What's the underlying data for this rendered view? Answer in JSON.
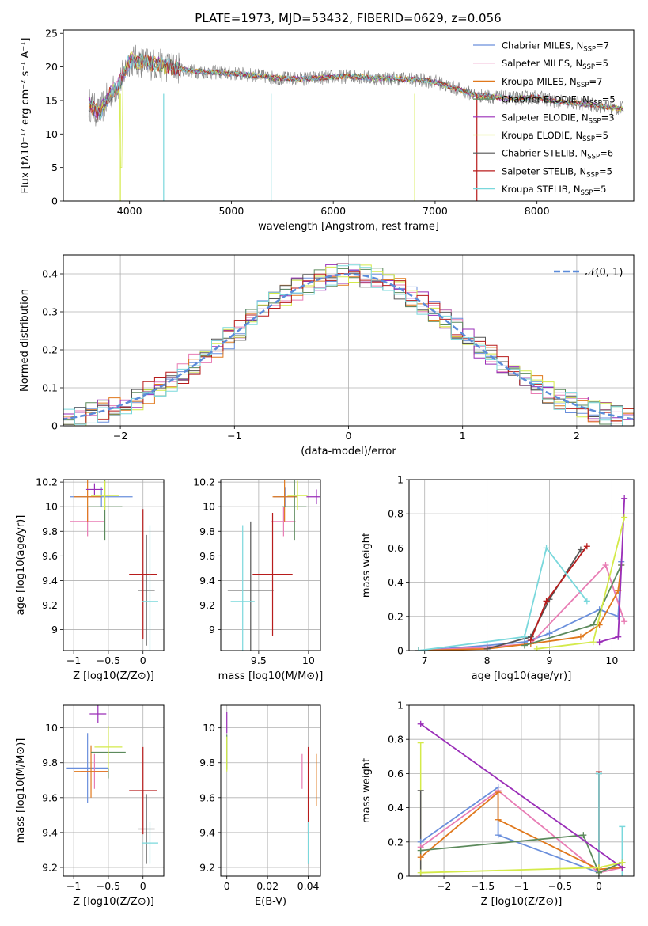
{
  "figure_title": "PLATE=1973, MJD=53432, FIBERID=0629, z=0.056",
  "colors": {
    "chabrier_miles": "#6a8fdc",
    "salpeter_miles": "#e87cb4",
    "kroupa_miles": "#e0781c",
    "chabrier_elodie": "#5c8a5c",
    "salpeter_elodie": "#9a2eb8",
    "kroupa_elodie": "#d4ea4a",
    "chabrier_stelib": "#555555",
    "salpeter_stelib": "#b81c1c",
    "kroupa_stelib": "#7ad8dc",
    "data_spectrum": "#808080",
    "normal_curve": "#5b8bd9",
    "grid": "#b0b0b0"
  },
  "legend_entries": [
    {
      "model": "Chabrier MILES",
      "nssp": "7"
    },
    {
      "model": "Salpeter MILES",
      "nssp": "5"
    },
    {
      "model": "Kroupa MILES",
      "nssp": "7"
    },
    {
      "model": "Chabrier ELODIE",
      "nssp": "5"
    },
    {
      "model": "Salpeter ELODIE",
      "nssp": "3"
    },
    {
      "model": "Kroupa ELODIE",
      "nssp": "5"
    },
    {
      "model": "Chabrier STELIB",
      "nssp": "6"
    },
    {
      "model": "Salpeter STELIB",
      "nssp": "5"
    },
    {
      "model": "Kroupa STELIB",
      "nssp": "5"
    }
  ],
  "chart_data": [
    {
      "id": "spectrum",
      "type": "line",
      "title": "PLATE=1973, MJD=53432, FIBERID=0629, z=0.056",
      "xlabel": "wavelength [Angstrom, rest frame]",
      "ylabel": "Flux [fλ10⁻¹⁷ erg cm⁻² s⁻¹ A⁻¹]",
      "xlim": [
        3350,
        8950
      ],
      "ylim": [
        0,
        25.5
      ],
      "xticks": [
        4000,
        5000,
        6000,
        7000,
        8000
      ],
      "yticks": [
        0,
        5,
        10,
        15,
        20,
        25
      ],
      "continuum": {
        "x": [
          3600,
          3700,
          3800,
          3900,
          4000,
          4100,
          4200,
          4400,
          4600,
          4800,
          5000,
          5200,
          5400,
          5600,
          5800,
          6000,
          6200,
          6400,
          6600,
          6800,
          7000,
          7200,
          7400,
          7600,
          7800,
          8000,
          8200,
          8400,
          8600,
          8800
        ],
        "y": [
          14.5,
          13.0,
          15.8,
          17.5,
          21.0,
          20.8,
          20.5,
          20.0,
          19.4,
          19.2,
          19.0,
          18.8,
          18.4,
          18.2,
          18.3,
          18.5,
          18.6,
          18.3,
          18.3,
          18.1,
          17.8,
          16.8,
          15.8,
          15.5,
          15.3,
          15.5,
          14.8,
          14.6,
          14.2,
          13.8
        ]
      },
      "grid": false,
      "legend_position": "upper right"
    },
    {
      "id": "residuals",
      "type": "histogram",
      "xlabel": "(data-model)/error",
      "ylabel": "Normed distribution",
      "xlim": [
        -2.5,
        2.5
      ],
      "ylim": [
        0,
        0.45
      ],
      "xticks": [
        -2,
        -1,
        0,
        1,
        2
      ],
      "yticks": [
        0.0,
        0.1,
        0.2,
        0.3,
        0.4
      ],
      "legend": "𝒩(0, 1)",
      "grid": true
    },
    {
      "id": "age_vs_Z",
      "type": "scatter",
      "xlabel": "Z [log10(Z/Z⊙)]",
      "ylabel": "age  [log10(age/yr)]",
      "xlim": [
        -1.15,
        0.3
      ],
      "ylim": [
        8.83,
        10.22
      ],
      "xticks": [
        -1.0,
        -0.5,
        0.0
      ],
      "yticks": [
        9.0,
        9.2,
        9.4,
        9.6,
        9.8,
        10.0,
        10.2
      ],
      "points": [
        {
          "key": "chabrier_miles",
          "x": -0.6,
          "y": 10.08,
          "xerr": 0.45,
          "yerr": 0.08
        },
        {
          "key": "salpeter_miles",
          "x": -0.8,
          "y": 9.88,
          "xerr": 0.25,
          "yerr": 0.12
        },
        {
          "key": "kroupa_miles",
          "x": -0.8,
          "y": 10.08,
          "xerr": 0.2,
          "yerr": 0.2
        },
        {
          "key": "chabrier_elodie",
          "x": -0.55,
          "y": 10.0,
          "xerr": 0.25,
          "yerr": 0.27
        },
        {
          "key": "salpeter_elodie",
          "x": -0.7,
          "y": 10.14,
          "xerr": 0.12,
          "yerr": 0.05
        },
        {
          "key": "kroupa_elodie",
          "x": -0.55,
          "y": 10.09,
          "xerr": 0.2,
          "yerr": 0.12
        },
        {
          "key": "chabrier_stelib",
          "x": 0.05,
          "y": 9.32,
          "xerr": 0.12,
          "yerr": 0.45
        },
        {
          "key": "salpeter_stelib",
          "x": 0.0,
          "y": 9.45,
          "xerr": 0.2,
          "yerr": 0.53
        },
        {
          "key": "kroupa_stelib",
          "x": 0.1,
          "y": 9.23,
          "xerr": 0.12,
          "yerr": 0.62
        }
      ],
      "grid": true
    },
    {
      "id": "age_vs_mass",
      "type": "scatter",
      "xlabel": "mass [log10(M/M⊙)]",
      "ylabel": "",
      "xlim": [
        9.12,
        10.12
      ],
      "ylim": [
        8.83,
        10.22
      ],
      "xticks": [
        9.5,
        10.0
      ],
      "yticks": [
        9.0,
        9.2,
        9.4,
        9.6,
        9.8,
        10.0,
        10.2
      ],
      "points": [
        {
          "key": "chabrier_miles",
          "x": 9.77,
          "y": 10.08,
          "xerr": 0.12,
          "yerr": 0.08
        },
        {
          "key": "salpeter_miles",
          "x": 9.75,
          "y": 9.88,
          "xerr": 0.12,
          "yerr": 0.12
        },
        {
          "key": "kroupa_miles",
          "x": 9.76,
          "y": 10.08,
          "xerr": 0.12,
          "yerr": 0.2
        },
        {
          "key": "chabrier_elodie",
          "x": 9.86,
          "y": 10.0,
          "xerr": 0.12,
          "yerr": 0.27
        },
        {
          "key": "salpeter_elodie",
          "x": 10.08,
          "y": 10.08,
          "xerr": 0.1,
          "yerr": 0.06
        },
        {
          "key": "kroupa_elodie",
          "x": 9.89,
          "y": 10.09,
          "xerr": 0.1,
          "yerr": 0.12
        },
        {
          "key": "chabrier_stelib",
          "x": 9.42,
          "y": 9.32,
          "xerr": 0.23,
          "yerr": 0.56
        },
        {
          "key": "salpeter_stelib",
          "x": 9.64,
          "y": 9.45,
          "xerr": 0.2,
          "yerr": 0.5
        },
        {
          "key": "kroupa_stelib",
          "x": 9.34,
          "y": 9.23,
          "xerr": 0.12,
          "yerr": 0.62
        }
      ],
      "grid": true
    },
    {
      "id": "weight_vs_age",
      "type": "line",
      "xlabel": "age  [log10(age/yr)]",
      "ylabel": "mass weight",
      "xlim": [
        6.75,
        10.35
      ],
      "ylim": [
        0,
        1
      ],
      "xticks": [
        7,
        8,
        9,
        10
      ],
      "yticks": [
        0.0,
        0.2,
        0.4,
        0.6,
        0.8,
        1.0
      ],
      "series": [
        {
          "key": "chabrier_miles",
          "x": [
            6.9,
            8.0,
            8.6,
            9.0,
            9.8,
            10.1,
            10.15
          ],
          "y": [
            0.0,
            0.03,
            0.05,
            0.1,
            0.24,
            0.2,
            0.52
          ]
        },
        {
          "key": "salpeter_miles",
          "x": [
            6.9,
            8.0,
            8.7,
            9.9,
            10.2
          ],
          "y": [
            0.0,
            0.02,
            0.04,
            0.5,
            0.17
          ]
        },
        {
          "key": "kroupa_miles",
          "x": [
            6.9,
            8.0,
            8.7,
            9.5,
            9.8,
            10.1,
            10.15
          ],
          "y": [
            0.0,
            0.01,
            0.04,
            0.08,
            0.15,
            0.35,
            0.5
          ]
        },
        {
          "key": "chabrier_elodie",
          "x": [
            8.6,
            9.7,
            10.15
          ],
          "y": [
            0.03,
            0.15,
            0.5
          ]
        },
        {
          "key": "salpeter_elodie",
          "x": [
            9.8,
            10.1,
            10.2
          ],
          "y": [
            0.05,
            0.08,
            0.89
          ]
        },
        {
          "key": "kroupa_elodie",
          "x": [
            8.8,
            9.7,
            10.2
          ],
          "y": [
            0.01,
            0.05,
            0.78
          ]
        },
        {
          "key": "chabrier_stelib",
          "x": [
            8.0,
            8.7,
            9.0,
            9.5
          ],
          "y": [
            0.01,
            0.08,
            0.3,
            0.59
          ]
        },
        {
          "key": "salpeter_stelib",
          "x": [
            8.7,
            8.95,
            9.6
          ],
          "y": [
            0.06,
            0.29,
            0.61
          ]
        },
        {
          "key": "kroupa_stelib",
          "x": [
            6.9,
            8.6,
            8.95,
            9.6
          ],
          "y": [
            0.0,
            0.08,
            0.6,
            0.29
          ]
        }
      ],
      "grid": true
    },
    {
      "id": "mass_vs_Z",
      "type": "scatter",
      "xlabel": "Z [log10(Z/Z⊙)]",
      "ylabel": "mass [log10(M/M⊙)]",
      "xlim": [
        -1.15,
        0.3
      ],
      "ylim": [
        9.15,
        10.13
      ],
      "xticks": [
        -1.0,
        -0.5,
        0.0
      ],
      "yticks": [
        9.2,
        9.4,
        9.6,
        9.8,
        10.0
      ],
      "points": [
        {
          "key": "chabrier_miles",
          "x": -0.8,
          "y": 9.77,
          "xerr": 0.3,
          "yerr": 0.2
        },
        {
          "key": "salpeter_miles",
          "x": -0.7,
          "y": 9.75,
          "xerr": 0.2,
          "yerr": 0.1
        },
        {
          "key": "kroupa_miles",
          "x": -0.75,
          "y": 9.75,
          "xerr": 0.25,
          "yerr": 0.15
        },
        {
          "key": "chabrier_elodie",
          "x": -0.5,
          "y": 9.86,
          "xerr": 0.25,
          "yerr": 0.15
        },
        {
          "key": "salpeter_elodie",
          "x": -0.65,
          "y": 10.08,
          "xerr": 0.12,
          "yerr": 0.05
        },
        {
          "key": "kroupa_elodie",
          "x": -0.5,
          "y": 9.89,
          "xerr": 0.2,
          "yerr": 0.12
        },
        {
          "key": "chabrier_stelib",
          "x": 0.05,
          "y": 9.42,
          "xerr": 0.12,
          "yerr": 0.2
        },
        {
          "key": "salpeter_stelib",
          "x": 0.0,
          "y": 9.64,
          "xerr": 0.2,
          "yerr": 0.25
        },
        {
          "key": "kroupa_stelib",
          "x": 0.1,
          "y": 9.34,
          "xerr": 0.12,
          "yerr": 0.12
        }
      ],
      "grid": true
    },
    {
      "id": "mass_vs_ebv",
      "type": "scatter",
      "xlabel": "E(B-V)",
      "ylabel": "",
      "xlim": [
        -0.003,
        0.046
      ],
      "ylim": [
        9.15,
        10.13
      ],
      "xticks": [
        0.0,
        0.02,
        0.04
      ],
      "yticks": [
        9.2,
        9.4,
        9.6,
        9.8,
        10.0
      ],
      "points": [
        {
          "key": "chabrier_miles",
          "x": 0.04,
          "y": 9.76,
          "yerr": 0.12
        },
        {
          "key": "salpeter_miles",
          "x": 0.037,
          "y": 9.75,
          "yerr": 0.1
        },
        {
          "key": "kroupa_miles",
          "x": 0.044,
          "y": 9.7,
          "yerr": 0.15
        },
        {
          "key": "chabrier_elodie",
          "x": 0.0,
          "y": 9.86,
          "yerr": 0.1
        },
        {
          "key": "salpeter_elodie",
          "x": 0.0,
          "y": 10.03,
          "yerr": 0.06
        },
        {
          "key": "kroupa_elodie",
          "x": 0.0,
          "y": 9.85,
          "yerr": 0.1
        },
        {
          "key": "chabrier_stelib",
          "x": 0.04,
          "y": 9.42,
          "yerr": 0.2
        },
        {
          "key": "salpeter_stelib",
          "x": 0.04,
          "y": 9.64,
          "yerr": 0.25
        },
        {
          "key": "kroupa_stelib",
          "x": 0.04,
          "y": 9.34,
          "yerr": 0.12
        }
      ],
      "grid": true
    },
    {
      "id": "weight_vs_Z",
      "type": "line",
      "xlabel": "Z [log10(Z/Z⊙)]",
      "ylabel": "mass weight",
      "xlim": [
        -2.45,
        0.45
      ],
      "ylim": [
        0,
        1
      ],
      "xticks": [
        -2.0,
        -1.5,
        -1.0,
        -0.5,
        0.0
      ],
      "yticks": [
        0.0,
        0.2,
        0.4,
        0.6,
        0.8,
        1.0
      ],
      "series": [
        {
          "key": "chabrier_miles",
          "x": [
            -2.3,
            -1.3,
            -1.3,
            0.0,
            0.3
          ],
          "y": [
            0.2,
            0.52,
            0.24,
            0.02,
            0.08
          ]
        },
        {
          "key": "salpeter_miles",
          "x": [
            -2.3,
            -1.3,
            0.0,
            0.3
          ],
          "y": [
            0.17,
            0.5,
            0.02,
            0.05
          ]
        },
        {
          "key": "kroupa_miles",
          "x": [
            -2.3,
            -1.3,
            -1.3,
            0.0,
            0.3
          ],
          "y": [
            0.11,
            0.49,
            0.33,
            0.04,
            0.05
          ]
        },
        {
          "key": "chabrier_elodie",
          "x": [
            -2.3,
            -0.2,
            0.0,
            0.3
          ],
          "y": [
            0.15,
            0.24,
            0.02,
            0.08
          ]
        },
        {
          "key": "salpeter_elodie",
          "x": [
            -2.3,
            0.3
          ],
          "y": [
            0.89,
            0.05
          ]
        },
        {
          "key": "kroupa_elodie",
          "x": [
            -2.3,
            0.0,
            0.3
          ],
          "y": [
            0.02,
            0.05,
            0.08
          ]
        }
      ],
      "vertical_lines": [
        {
          "key": "kroupa_elodie",
          "x": -2.3,
          "y": [
            0.0,
            0.78
          ]
        },
        {
          "key": "chabrier_stelib",
          "x": -2.3,
          "y": [
            0.0,
            0.5
          ]
        },
        {
          "key": "chabrier_stelib",
          "x": 0.0,
          "y": [
            0.0,
            0.6
          ]
        },
        {
          "key": "salpeter_stelib",
          "x": 0.0,
          "y": [
            0.0,
            0.61
          ]
        },
        {
          "key": "kroupa_stelib",
          "x": 0.0,
          "y": [
            0.0,
            0.6
          ]
        },
        {
          "key": "kroupa_stelib",
          "x": 0.3,
          "y": [
            0.0,
            0.29
          ]
        }
      ],
      "grid": true
    }
  ]
}
